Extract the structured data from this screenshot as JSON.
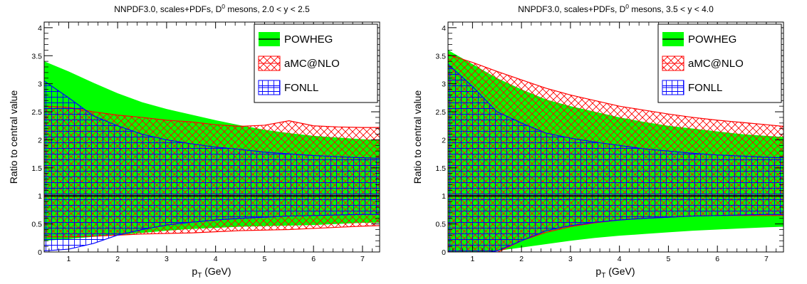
{
  "chart_data": [
    {
      "type": "area",
      "title_main": "NNPDF3.0, scales+PDFs, D",
      "title_sup": "0",
      "title_tail": " mesons, 2.0 < y < 2.5",
      "xlabel_main": "p",
      "xlabel_sub": "T",
      "xlabel_tail": " (GeV)",
      "ylabel": "Ratio to central value",
      "xlim": [
        0.5,
        7.35
      ],
      "ylim": [
        0,
        4.1
      ],
      "xticks": [
        1,
        2,
        3,
        4,
        5,
        6,
        7
      ],
      "yticks": [
        0,
        0.5,
        1,
        1.5,
        2,
        2.5,
        3,
        3.5,
        4
      ],
      "reference_line": 1,
      "legend_position": "top-right",
      "series": [
        {
          "name": "POWHEG",
          "color": "#00ff00",
          "style": "solid",
          "x": [
            0.5,
            1,
            1.5,
            2,
            2.5,
            3,
            3.5,
            4,
            4.5,
            5,
            5.5,
            6,
            6.5,
            7,
            7.35
          ],
          "upper": [
            3.4,
            3.22,
            3.02,
            2.83,
            2.67,
            2.55,
            2.45,
            2.35,
            2.26,
            2.18,
            2.12,
            2.07,
            2.04,
            2.01,
            2.0
          ],
          "lower": [
            0.2,
            0.23,
            0.27,
            0.3,
            0.34,
            0.38,
            0.41,
            0.43,
            0.45,
            0.46,
            0.47,
            0.48,
            0.5,
            0.52,
            0.52
          ]
        },
        {
          "name": "aMC@NLO",
          "color": "#ff0000",
          "style": "cross-hatch",
          "x": [
            0.5,
            1,
            1.5,
            2,
            2.5,
            3,
            3.5,
            4,
            4.5,
            5,
            5.5,
            6,
            6.5,
            7,
            7.35
          ],
          "upper": [
            2.6,
            2.58,
            2.5,
            2.44,
            2.4,
            2.35,
            2.32,
            2.27,
            2.24,
            2.26,
            2.34,
            2.25,
            2.23,
            2.22,
            2.22
          ],
          "lower": [
            0.27,
            0.27,
            0.28,
            0.3,
            0.32,
            0.33,
            0.34,
            0.36,
            0.38,
            0.39,
            0.4,
            0.42,
            0.44,
            0.46,
            0.47
          ]
        },
        {
          "name": "FONLL",
          "color": "#0000ff",
          "style": "grid-hatch",
          "x": [
            0.5,
            1,
            1.5,
            2,
            2.5,
            3,
            3.5,
            4,
            4.5,
            5,
            5.5,
            6,
            6.5,
            7,
            7.35
          ],
          "upper": [
            3.05,
            2.75,
            2.43,
            2.25,
            2.1,
            2.0,
            1.93,
            1.87,
            1.83,
            1.78,
            1.75,
            1.72,
            1.7,
            1.68,
            1.67
          ],
          "lower": [
            0.02,
            0.05,
            0.15,
            0.3,
            0.4,
            0.48,
            0.53,
            0.57,
            0.6,
            0.62,
            0.64,
            0.65,
            0.66,
            0.67,
            0.67
          ]
        }
      ]
    },
    {
      "type": "area",
      "title_main": "NNPDF3.0, scales+PDFs, D",
      "title_sup": "0",
      "title_tail": " mesons, 3.5 < y < 4.0",
      "xlabel_main": "p",
      "xlabel_sub": "T",
      "xlabel_tail": " (GeV)",
      "ylabel": "Ratio to central value",
      "xlim": [
        0.5,
        7.35
      ],
      "ylim": [
        0,
        4.1
      ],
      "xticks": [
        1,
        2,
        3,
        4,
        5,
        6,
        7
      ],
      "yticks": [
        0,
        0.5,
        1,
        1.5,
        2,
        2.5,
        3,
        3.5,
        4
      ],
      "reference_line": 1,
      "legend_position": "top-right",
      "series": [
        {
          "name": "POWHEG",
          "color": "#00ff00",
          "style": "solid",
          "x": [
            0.5,
            1,
            1.5,
            2,
            2.5,
            3,
            3.5,
            4,
            4.5,
            5,
            5.5,
            6,
            6.5,
            7,
            7.35
          ],
          "upper": [
            3.6,
            3.35,
            3.1,
            2.9,
            2.72,
            2.6,
            2.5,
            2.4,
            2.32,
            2.25,
            2.2,
            2.15,
            2.1,
            2.07,
            2.05
          ],
          "lower": [
            -0.05,
            -0.03,
            0.02,
            0.08,
            0.14,
            0.2,
            0.25,
            0.29,
            0.32,
            0.35,
            0.38,
            0.4,
            0.42,
            0.44,
            0.45
          ]
        },
        {
          "name": "aMC@NLO",
          "color": "#ff0000",
          "style": "cross-hatch",
          "x": [
            0.5,
            1,
            1.5,
            2,
            2.5,
            3,
            3.5,
            4,
            4.5,
            5,
            5.5,
            6,
            6.5,
            7,
            7.35
          ],
          "upper": [
            3.52,
            3.38,
            3.22,
            3.07,
            2.92,
            2.8,
            2.7,
            2.6,
            2.53,
            2.46,
            2.4,
            2.35,
            2.31,
            2.27,
            2.24
          ],
          "lower": [
            -0.05,
            -0.04,
            -0.01,
            0.2,
            0.35,
            0.45,
            0.52,
            0.57,
            0.6,
            0.62,
            0.64,
            0.65,
            0.65,
            0.65,
            0.65
          ]
        },
        {
          "name": "FONLL",
          "color": "#0000ff",
          "style": "grid-hatch",
          "x": [
            0.5,
            1,
            1.5,
            2,
            2.5,
            3,
            3.5,
            4,
            4.5,
            5,
            5.5,
            6,
            6.5,
            7,
            7.35
          ],
          "upper": [
            3.35,
            2.95,
            2.5,
            2.3,
            2.12,
            2.03,
            1.96,
            1.9,
            1.84,
            1.8,
            1.76,
            1.73,
            1.71,
            1.69,
            1.68
          ],
          "lower": [
            -0.05,
            -0.05,
            0.02,
            0.2,
            0.38,
            0.47,
            0.53,
            0.57,
            0.6,
            0.62,
            0.64,
            0.65,
            0.66,
            0.67,
            0.67
          ]
        }
      ]
    }
  ]
}
